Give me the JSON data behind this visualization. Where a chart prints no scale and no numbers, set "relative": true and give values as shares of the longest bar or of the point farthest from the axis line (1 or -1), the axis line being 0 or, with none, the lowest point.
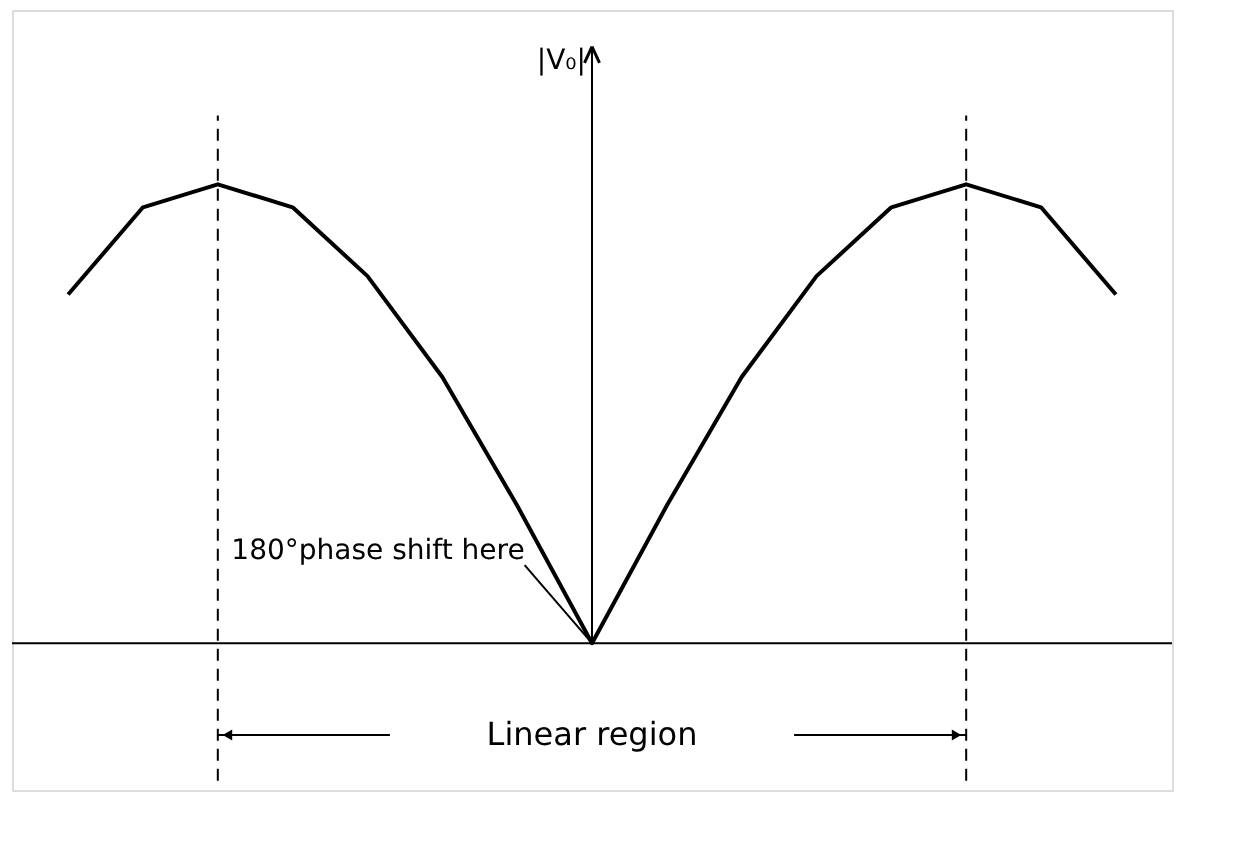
{
  "chart_data": {
    "type": "line",
    "relative": true,
    "ylabel": "|V₀|",
    "categories": [
      null,
      null,
      null,
      null,
      null,
      null,
      null,
      null,
      null,
      null,
      null,
      null,
      null,
      null,
      null
    ],
    "values": [
      0.76,
      0.95,
      1.0,
      0.95,
      0.8,
      0.58,
      0.3,
      0,
      0.3,
      0.58,
      0.8,
      0.95,
      1.0,
      0.95,
      0.76
    ],
    "color": "#000000",
    "marker": "none",
    "line_style": "solid",
    "grid": false,
    "annotations": [
      "180°phase shift here",
      "Linear region"
    ]
  }
}
